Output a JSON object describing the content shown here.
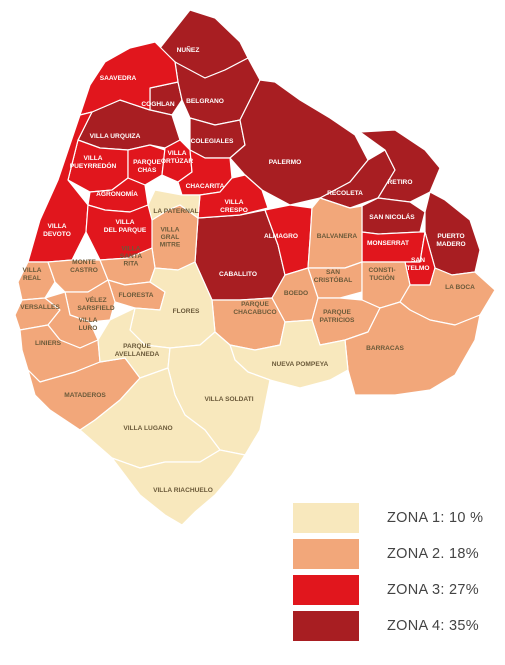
{
  "colors": {
    "zona1": "#f8e8bd",
    "zona2": "#f2a77a",
    "zona3": "#e1161d",
    "zona4": "#a81e22",
    "label_dark": "#6b5a3a",
    "label_light": "#ffffff"
  },
  "legend": [
    {
      "label": "ZONA 1: 10 %",
      "zone": "zona1"
    },
    {
      "label": "ZONA 2. 18%",
      "zone": "zona2"
    },
    {
      "label": "ZONA 3: 27%",
      "zone": "zona3"
    },
    {
      "label": "ZONA 4: 35%",
      "zone": "zona4"
    }
  ],
  "neighborhoods": {
    "nunez": {
      "name": "NUÑEZ",
      "zone": "zona4"
    },
    "saavedra": {
      "name": "SAAVEDRA",
      "zone": "zona3"
    },
    "coghlan": {
      "name": "COGHLAN",
      "zone": "zona4"
    },
    "belgrano": {
      "name": "BELGRANO",
      "zone": "zona4"
    },
    "villa_urquiza": {
      "name": "VILLA URQUIZA",
      "zone": "zona4"
    },
    "colegiales": {
      "name": "COLEGIALES",
      "zone": "zona4"
    },
    "palermo": {
      "name": "PALERMO",
      "zone": "zona4"
    },
    "villa_pueyrredon": {
      "name": [
        "VILLA",
        "PUEYRREDÓN"
      ],
      "zone": "zona3"
    },
    "parque_chas": {
      "name": [
        "PARQUE",
        "CHAS"
      ],
      "zone": "zona3"
    },
    "villa_ortuzar": {
      "name": [
        "VILLA",
        "ORTÚZAR"
      ],
      "zone": "zona3"
    },
    "agronomia": {
      "name": "AGRONOMÍA",
      "zone": "zona3"
    },
    "chacarita": {
      "name": "CHACARITA",
      "zone": "zona3"
    },
    "recoleta": {
      "name": "RECOLETA",
      "zone": "zona4"
    },
    "retiro": {
      "name": "RETIRO",
      "zone": "zona4"
    },
    "la_paternal": {
      "name": "LA PATERNAL",
      "zone": "zona1"
    },
    "villa_crespo": {
      "name": [
        "VILLA",
        "CRESPO"
      ],
      "zone": "zona3"
    },
    "villa_devoto": {
      "name": [
        "VILLA",
        "DEVOTO"
      ],
      "zone": "zona3"
    },
    "villa_del_parque": {
      "name": [
        "VILLA",
        "DEL PARQUE"
      ],
      "zone": "zona3"
    },
    "villa_gral_mitre": {
      "name": [
        "VILLA",
        "GRAL",
        "MITRE"
      ],
      "zone": "zona2"
    },
    "san_nicolas": {
      "name": "SAN NICOLÁS",
      "zone": "zona4"
    },
    "almagro": {
      "name": "ALMAGRO",
      "zone": "zona3"
    },
    "balvanera": {
      "name": "BALVANERA",
      "zone": "zona2"
    },
    "monserrat": {
      "name": "MONSERRAT",
      "zone": "zona3"
    },
    "puerto_madero": {
      "name": [
        "PUERTO",
        "MADERO"
      ],
      "zone": "zona4"
    },
    "villa_real": {
      "name": [
        "VILLA",
        "REAL"
      ],
      "zone": "zona2"
    },
    "monte_castro": {
      "name": [
        "MONTE",
        "CASTRO"
      ],
      "zone": "zona2"
    },
    "villa_santa_rita": {
      "name": [
        "VILLA",
        "SANTA",
        "RITA"
      ],
      "zone": "zona2"
    },
    "caballito": {
      "name": "CABALLITO",
      "zone": "zona4"
    },
    "san_telmo": {
      "name": [
        "SAN",
        "TELMO"
      ],
      "zone": "zona3"
    },
    "san_cristobal": {
      "name": [
        "SAN",
        "CRISTÓBAL"
      ],
      "zone": "zona2"
    },
    "constitucion": {
      "name": [
        "CONSTI-",
        "TUCIÓN"
      ],
      "zone": "zona2"
    },
    "versalles": {
      "name": "VERSALLES",
      "zone": "zona2"
    },
    "floresta": {
      "name": "FLORESTA",
      "zone": "zona2"
    },
    "velez_sarsfield": {
      "name": [
        "VÉLEZ",
        "SARSFIELD"
      ],
      "zone": "zona2"
    },
    "boedo": {
      "name": "BOEDO",
      "zone": "zona2"
    },
    "la_boca": {
      "name": "LA BOCA",
      "zone": "zona2"
    },
    "villa_luro": {
      "name": [
        "VILLA",
        "LURO"
      ],
      "zone": "zona2"
    },
    "flores": {
      "name": "FLORES",
      "zone": "zona1"
    },
    "parque_chacabuco": {
      "name": [
        "PARQUE",
        "CHACABUCO"
      ],
      "zone": "zona2"
    },
    "parque_patricios": {
      "name": [
        "PARQUE",
        "PATRICIOS"
      ],
      "zone": "zona2"
    },
    "liniers": {
      "name": "LINIERS",
      "zone": "zona2"
    },
    "parque_avellaneda": {
      "name": [
        "PARQUE",
        "AVELLANEDA"
      ],
      "zone": "zona1"
    },
    "nueva_pompeya": {
      "name": "NUEVA POMPEYA",
      "zone": "zona1"
    },
    "barracas": {
      "name": "BARRACAS",
      "zone": "zona2"
    },
    "mataderos": {
      "name": "MATADEROS",
      "zone": "zona2"
    },
    "villa_soldati": {
      "name": "VILLA SOLDATI",
      "zone": "zona1"
    },
    "villa_lugano": {
      "name": "VILLA LUGANO",
      "zone": "zona1"
    },
    "villa_riachuelo": {
      "name": "VILLA RIACHUELO",
      "zone": "zona1"
    }
  }
}
